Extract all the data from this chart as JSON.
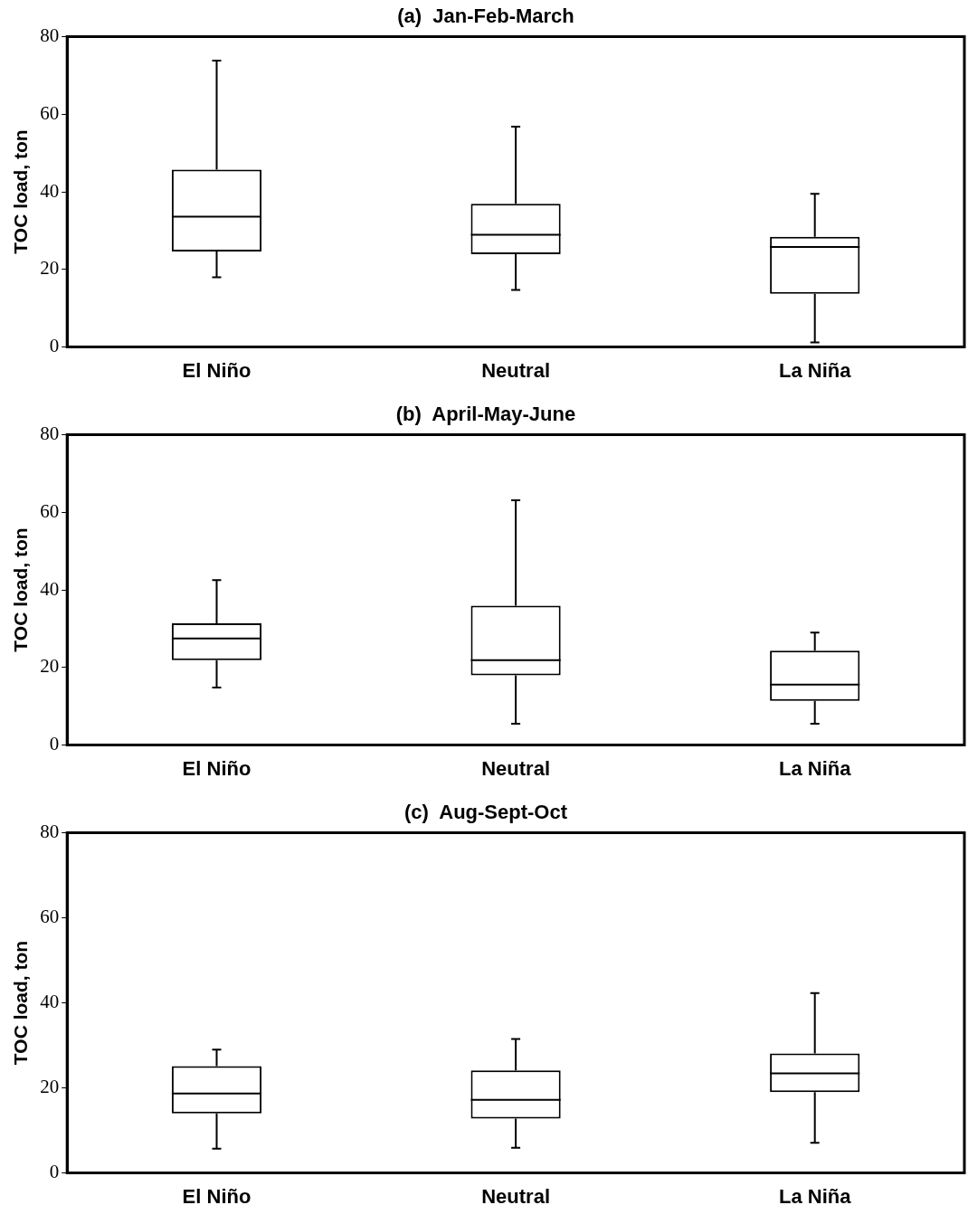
{
  "chart_data": [
    {
      "type": "box",
      "title": "(a)  Jan-Feb-March",
      "ylabel": "TOC load, ton",
      "categories": [
        "El Niño",
        "Neutral",
        "La Niña"
      ],
      "ylim": [
        0,
        80
      ],
      "yticks": [
        0,
        20,
        40,
        60,
        80
      ],
      "boxes": [
        {
          "low": 18,
          "q1": 24.6,
          "median": 33.6,
          "q3": 45.7,
          "high": 73.8
        },
        {
          "low": 14.7,
          "q1": 23.9,
          "median": 28.9,
          "q3": 36.9,
          "high": 56.8
        },
        {
          "low": 1.2,
          "q1": 13.7,
          "median": 25.8,
          "q3": 28.4,
          "high": 39.5
        }
      ]
    },
    {
      "type": "box",
      "title": "(b)  April-May-June",
      "ylabel": "TOC load, ton",
      "categories": [
        "El Niño",
        "Neutral",
        "La Niña"
      ],
      "ylim": [
        0,
        80
      ],
      "yticks": [
        0,
        20,
        40,
        60,
        80
      ],
      "boxes": [
        {
          "low": 14.8,
          "q1": 21.9,
          "median": 27.5,
          "q3": 31.4,
          "high": 42.5
        },
        {
          "low": 5.5,
          "q1": 18,
          "median": 21.9,
          "q3": 35.9,
          "high": 63.1
        },
        {
          "low": 5.5,
          "q1": 11.4,
          "median": 15.6,
          "q3": 24.3,
          "high": 29
        }
      ]
    },
    {
      "type": "box",
      "title": "(c)  Aug-Sept-Oct",
      "ylabel": "TOC load, ton",
      "categories": [
        "El Niño",
        "Neutral",
        "La Niña"
      ],
      "ylim": [
        0,
        80
      ],
      "yticks": [
        0,
        20,
        40,
        60,
        80
      ],
      "boxes": [
        {
          "low": 5.7,
          "q1": 14,
          "median": 18.7,
          "q3": 25.1,
          "high": 29
        },
        {
          "low": 5.9,
          "q1": 12.8,
          "median": 17.2,
          "q3": 24.1,
          "high": 31.5
        },
        {
          "low": 7.1,
          "q1": 19,
          "median": 23.4,
          "q3": 28.1,
          "high": 42.3
        }
      ]
    }
  ]
}
